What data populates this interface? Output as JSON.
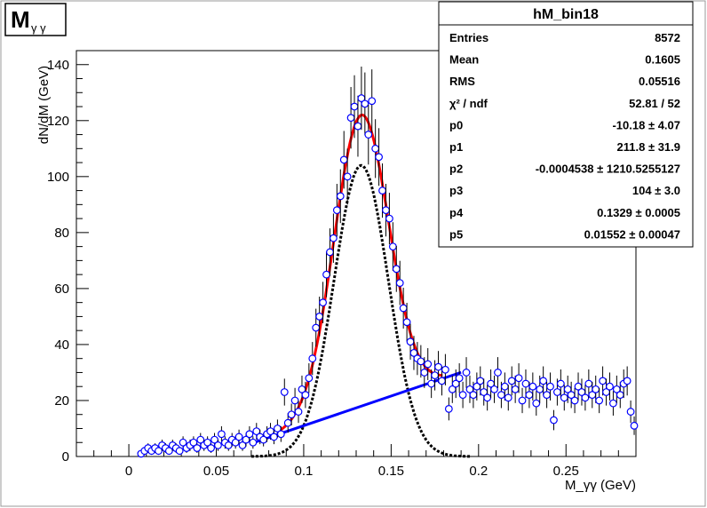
{
  "canvas_title": {
    "main": "M",
    "sub": "γ γ"
  },
  "stats": {
    "title": "hM_bin18",
    "rows": [
      {
        "label": "Entries",
        "value": "8572"
      },
      {
        "label": "Mean",
        "value": "0.1605"
      },
      {
        "label": "RMS",
        "value": "0.05516"
      },
      {
        "label": "χ² / ndf",
        "value": "52.81 / 52"
      },
      {
        "label": "p0",
        "value": "-10.18 ± 4.07"
      },
      {
        "label": "p1",
        "value": "211.8 ± 31.9"
      },
      {
        "label": "p2",
        "value": "-0.0004538 ± 1210.5255127"
      },
      {
        "label": "p3",
        "value": "104 ± 3.0"
      },
      {
        "label": "p4",
        "value": "0.1329 ± 0.0005"
      },
      {
        "label": "p5",
        "value": "0.01552 ± 0.00047"
      }
    ]
  },
  "chart_data": {
    "type": "scatter",
    "title": "",
    "xlabel": "M_γγ (GeV)",
    "ylabel": "dN/dM (GeV)",
    "xlim": [
      -0.03,
      0.29
    ],
    "ylim": [
      0,
      145
    ],
    "x_ticks": [
      0,
      0.05,
      0.1,
      0.15,
      0.2,
      0.25
    ],
    "x_tick_labels": [
      "0",
      "0.05",
      "0.1",
      "0.15",
      "0.2",
      "0.25"
    ],
    "y_ticks": [
      0,
      20,
      40,
      60,
      80,
      100,
      120,
      140
    ],
    "y_tick_labels": [
      "0",
      "20",
      "40",
      "60",
      "80",
      "100",
      "120",
      "140"
    ],
    "grid": false,
    "legend": "top-right",
    "marker_color": "#0000ff",
    "fit_color": "#ff0000",
    "background_color": "#0000ff",
    "signal_color": "#000000",
    "bin_width": 0.002,
    "fit_range": [
      0.07,
      0.19
    ],
    "fit_params": {
      "p0": -10.18,
      "p1": 211.8,
      "p3": 104,
      "p4": 0.1329,
      "p5": 0.01552
    },
    "points": [
      {
        "x": 0.007,
        "y": 1,
        "e": 1
      },
      {
        "x": 0.009,
        "y": 2,
        "e": 1.4
      },
      {
        "x": 0.011,
        "y": 3,
        "e": 1.7
      },
      {
        "x": 0.013,
        "y": 2,
        "e": 1.4
      },
      {
        "x": 0.015,
        "y": 3,
        "e": 1.7
      },
      {
        "x": 0.017,
        "y": 2,
        "e": 1.4
      },
      {
        "x": 0.019,
        "y": 4,
        "e": 2
      },
      {
        "x": 0.021,
        "y": 3,
        "e": 1.7
      },
      {
        "x": 0.023,
        "y": 2,
        "e": 1.4
      },
      {
        "x": 0.025,
        "y": 4,
        "e": 2
      },
      {
        "x": 0.027,
        "y": 3,
        "e": 1.7
      },
      {
        "x": 0.029,
        "y": 2,
        "e": 1.4
      },
      {
        "x": 0.031,
        "y": 5,
        "e": 2.2
      },
      {
        "x": 0.033,
        "y": 3,
        "e": 1.7
      },
      {
        "x": 0.035,
        "y": 4,
        "e": 2
      },
      {
        "x": 0.037,
        "y": 5,
        "e": 2.2
      },
      {
        "x": 0.039,
        "y": 3,
        "e": 1.7
      },
      {
        "x": 0.041,
        "y": 6,
        "e": 2.4
      },
      {
        "x": 0.043,
        "y": 4,
        "e": 2
      },
      {
        "x": 0.045,
        "y": 5,
        "e": 2.2
      },
      {
        "x": 0.047,
        "y": 3,
        "e": 1.7
      },
      {
        "x": 0.049,
        "y": 6,
        "e": 2.4
      },
      {
        "x": 0.051,
        "y": 4,
        "e": 2
      },
      {
        "x": 0.053,
        "y": 8,
        "e": 2.8
      },
      {
        "x": 0.055,
        "y": 5,
        "e": 2.2
      },
      {
        "x": 0.057,
        "y": 4,
        "e": 2
      },
      {
        "x": 0.059,
        "y": 6,
        "e": 2.4
      },
      {
        "x": 0.061,
        "y": 5,
        "e": 2.2
      },
      {
        "x": 0.063,
        "y": 7,
        "e": 2.6
      },
      {
        "x": 0.065,
        "y": 4,
        "e": 2
      },
      {
        "x": 0.067,
        "y": 6,
        "e": 2.4
      },
      {
        "x": 0.069,
        "y": 8,
        "e": 2.8
      },
      {
        "x": 0.071,
        "y": 5,
        "e": 2.2
      },
      {
        "x": 0.073,
        "y": 9,
        "e": 3
      },
      {
        "x": 0.075,
        "y": 7,
        "e": 2.6
      },
      {
        "x": 0.077,
        "y": 6,
        "e": 2.4
      },
      {
        "x": 0.079,
        "y": 8,
        "e": 2.8
      },
      {
        "x": 0.081,
        "y": 9,
        "e": 3
      },
      {
        "x": 0.083,
        "y": 7,
        "e": 2.6
      },
      {
        "x": 0.085,
        "y": 10,
        "e": 3.2
      },
      {
        "x": 0.087,
        "y": 8,
        "e": 2.8
      },
      {
        "x": 0.089,
        "y": 23,
        "e": 4.8
      },
      {
        "x": 0.091,
        "y": 12,
        "e": 3.5
      },
      {
        "x": 0.093,
        "y": 15,
        "e": 3.9
      },
      {
        "x": 0.095,
        "y": 20,
        "e": 4.5
      },
      {
        "x": 0.097,
        "y": 16,
        "e": 4
      },
      {
        "x": 0.099,
        "y": 24,
        "e": 4.9
      },
      {
        "x": 0.101,
        "y": 22,
        "e": 4.7
      },
      {
        "x": 0.103,
        "y": 28,
        "e": 5.3
      },
      {
        "x": 0.105,
        "y": 35,
        "e": 5.9
      },
      {
        "x": 0.107,
        "y": 46,
        "e": 6.8
      },
      {
        "x": 0.109,
        "y": 50,
        "e": 7.1
      },
      {
        "x": 0.111,
        "y": 55,
        "e": 7.4
      },
      {
        "x": 0.113,
        "y": 65,
        "e": 8.1
      },
      {
        "x": 0.115,
        "y": 73,
        "e": 8.5
      },
      {
        "x": 0.117,
        "y": 78,
        "e": 8.8
      },
      {
        "x": 0.119,
        "y": 88,
        "e": 9.4
      },
      {
        "x": 0.121,
        "y": 93,
        "e": 9.6
      },
      {
        "x": 0.123,
        "y": 106,
        "e": 10.3
      },
      {
        "x": 0.125,
        "y": 100,
        "e": 10
      },
      {
        "x": 0.127,
        "y": 121,
        "e": 11
      },
      {
        "x": 0.129,
        "y": 125,
        "e": 11.2
      },
      {
        "x": 0.131,
        "y": 118,
        "e": 10.9
      },
      {
        "x": 0.133,
        "y": 128,
        "e": 11.3
      },
      {
        "x": 0.135,
        "y": 126,
        "e": 11.2
      },
      {
        "x": 0.137,
        "y": 115,
        "e": 10.7
      },
      {
        "x": 0.139,
        "y": 127,
        "e": 11.3
      },
      {
        "x": 0.141,
        "y": 110,
        "e": 10.5
      },
      {
        "x": 0.143,
        "y": 107,
        "e": 10.3
      },
      {
        "x": 0.145,
        "y": 95,
        "e": 9.7
      },
      {
        "x": 0.147,
        "y": 88,
        "e": 9.4
      },
      {
        "x": 0.149,
        "y": 85,
        "e": 9.2
      },
      {
        "x": 0.151,
        "y": 75,
        "e": 8.7
      },
      {
        "x": 0.153,
        "y": 67,
        "e": 8.2
      },
      {
        "x": 0.155,
        "y": 62,
        "e": 7.9
      },
      {
        "x": 0.157,
        "y": 53,
        "e": 7.3
      },
      {
        "x": 0.159,
        "y": 48,
        "e": 6.9
      },
      {
        "x": 0.161,
        "y": 41,
        "e": 6.4
      },
      {
        "x": 0.163,
        "y": 37,
        "e": 6.1
      },
      {
        "x": 0.165,
        "y": 35,
        "e": 5.9
      },
      {
        "x": 0.167,
        "y": 34,
        "e": 5.8
      },
      {
        "x": 0.169,
        "y": 30,
        "e": 5.5
      },
      {
        "x": 0.171,
        "y": 33,
        "e": 5.7
      },
      {
        "x": 0.173,
        "y": 26,
        "e": 5.1
      },
      {
        "x": 0.175,
        "y": 29,
        "e": 5.4
      },
      {
        "x": 0.177,
        "y": 32,
        "e": 5.7
      },
      {
        "x": 0.179,
        "y": 27,
        "e": 5.2
      },
      {
        "x": 0.181,
        "y": 31,
        "e": 5.6
      },
      {
        "x": 0.183,
        "y": 17,
        "e": 4.1
      },
      {
        "x": 0.185,
        "y": 24,
        "e": 4.9
      },
      {
        "x": 0.187,
        "y": 26,
        "e": 5.1
      },
      {
        "x": 0.189,
        "y": 28,
        "e": 5.3
      },
      {
        "x": 0.191,
        "y": 22,
        "e": 4.7
      },
      {
        "x": 0.193,
        "y": 30,
        "e": 5.5
      },
      {
        "x": 0.195,
        "y": 24,
        "e": 4.9
      },
      {
        "x": 0.197,
        "y": 22,
        "e": 4.7
      },
      {
        "x": 0.199,
        "y": 25,
        "e": 5
      },
      {
        "x": 0.201,
        "y": 27,
        "e": 5.2
      },
      {
        "x": 0.203,
        "y": 23,
        "e": 4.8
      },
      {
        "x": 0.205,
        "y": 21,
        "e": 4.6
      },
      {
        "x": 0.207,
        "y": 26,
        "e": 5.1
      },
      {
        "x": 0.209,
        "y": 24,
        "e": 4.9
      },
      {
        "x": 0.211,
        "y": 30,
        "e": 5.5
      },
      {
        "x": 0.213,
        "y": 22,
        "e": 4.7
      },
      {
        "x": 0.215,
        "y": 25,
        "e": 5
      },
      {
        "x": 0.217,
        "y": 21,
        "e": 4.6
      },
      {
        "x": 0.219,
        "y": 27,
        "e": 5.2
      },
      {
        "x": 0.221,
        "y": 24,
        "e": 4.9
      },
      {
        "x": 0.223,
        "y": 28,
        "e": 5.3
      },
      {
        "x": 0.225,
        "y": 20,
        "e": 4.5
      },
      {
        "x": 0.227,
        "y": 26,
        "e": 5.1
      },
      {
        "x": 0.229,
        "y": 22,
        "e": 4.7
      },
      {
        "x": 0.231,
        "y": 25,
        "e": 5
      },
      {
        "x": 0.233,
        "y": 19,
        "e": 4.4
      },
      {
        "x": 0.235,
        "y": 24,
        "e": 4.9
      },
      {
        "x": 0.237,
        "y": 27,
        "e": 5.2
      },
      {
        "x": 0.239,
        "y": 22,
        "e": 4.7
      },
      {
        "x": 0.241,
        "y": 25,
        "e": 5
      },
      {
        "x": 0.243,
        "y": 13,
        "e": 3.6
      },
      {
        "x": 0.245,
        "y": 23,
        "e": 4.8
      },
      {
        "x": 0.247,
        "y": 26,
        "e": 5.1
      },
      {
        "x": 0.249,
        "y": 21,
        "e": 4.6
      },
      {
        "x": 0.251,
        "y": 24,
        "e": 4.9
      },
      {
        "x": 0.253,
        "y": 22,
        "e": 4.7
      },
      {
        "x": 0.255,
        "y": 20,
        "e": 4.5
      },
      {
        "x": 0.257,
        "y": 25,
        "e": 5
      },
      {
        "x": 0.259,
        "y": 23,
        "e": 4.8
      },
      {
        "x": 0.261,
        "y": 21,
        "e": 4.6
      },
      {
        "x": 0.263,
        "y": 26,
        "e": 5.1
      },
      {
        "x": 0.265,
        "y": 22,
        "e": 4.7
      },
      {
        "x": 0.267,
        "y": 24,
        "e": 4.9
      },
      {
        "x": 0.269,
        "y": 20,
        "e": 4.5
      },
      {
        "x": 0.271,
        "y": 27,
        "e": 5.2
      },
      {
        "x": 0.273,
        "y": 23,
        "e": 4.8
      },
      {
        "x": 0.275,
        "y": 25,
        "e": 5
      },
      {
        "x": 0.277,
        "y": 19,
        "e": 4.4
      },
      {
        "x": 0.279,
        "y": 24,
        "e": 4.9
      },
      {
        "x": 0.281,
        "y": 22,
        "e": 4.7
      },
      {
        "x": 0.283,
        "y": 26,
        "e": 5.1
      },
      {
        "x": 0.285,
        "y": 27,
        "e": 5.2
      },
      {
        "x": 0.287,
        "y": 16,
        "e": 4
      },
      {
        "x": 0.289,
        "y": 11,
        "e": 3.3
      }
    ]
  }
}
